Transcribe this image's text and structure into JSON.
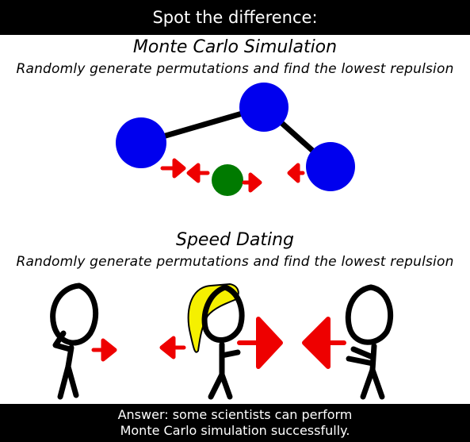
{
  "header": {
    "title": "Spot the difference:"
  },
  "monte_carlo": {
    "title": "Monte Carlo Simulation",
    "subtitle": "Randomly generate permutations and find the lowest repulsion"
  },
  "speed_dating": {
    "title": "Speed Dating",
    "subtitle": "Randomly generate permutations and find the lowest repulsion"
  },
  "footer": {
    "line1": "Answer: some scientists can perform",
    "line2": "Monte Carlo simulation successfully."
  },
  "colors": {
    "background": "#ffffff",
    "bar": "#000000",
    "atom_blue": "#0000ee",
    "atom_green": "#007a00",
    "arrow_red": "#ee0000",
    "hair_yellow": "#f5f000"
  }
}
